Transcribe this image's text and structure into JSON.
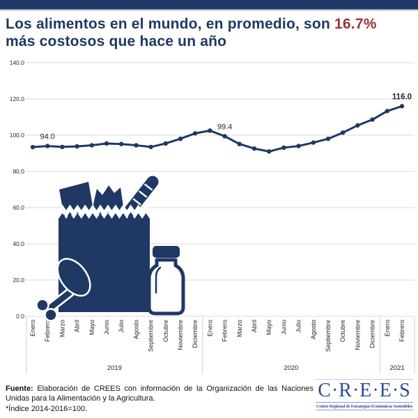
{
  "header": {
    "title_line1_before": "Los alimentos en el mundo, en promedio, son ",
    "title_highlight": "16.7%",
    "title_line2": "más costosos que hace un año"
  },
  "chart_data": {
    "type": "line",
    "categories": [
      "Enero",
      "Febrero",
      "Marzo",
      "Abril",
      "Mayo",
      "Junio",
      "Julio",
      "Agosto",
      "Septiembre",
      "Octubre",
      "Noviembre",
      "Diciembre",
      "Enero",
      "Febrero",
      "Marzo",
      "Abril",
      "Mayo",
      "Junio",
      "Julio",
      "Agosto",
      "Septiembre",
      "Octubre",
      "Noviembre",
      "Diciembre",
      "Enero",
      "Febrero"
    ],
    "year_groups": [
      {
        "label": "2019",
        "count": 12
      },
      {
        "label": "2020",
        "count": 12
      },
      {
        "label": "2021",
        "count": 2
      }
    ],
    "series": [
      {
        "name": "indice-precios-alimentos",
        "values": [
          93.4,
          94.0,
          93.5,
          93.8,
          94.4,
          95.4,
          95.1,
          94.4,
          93.5,
          95.4,
          98.0,
          101.0,
          102.5,
          99.4,
          95.1,
          92.6,
          91.0,
          93.1,
          94.0,
          95.9,
          98.0,
          101.4,
          105.4,
          108.6,
          113.3,
          116.0
        ]
      }
    ],
    "ylim": [
      0,
      140
    ],
    "ytick_interval": 20,
    "ytick_labels": [
      "0.0",
      "20.0",
      "40.0",
      "60.0",
      "80.0",
      "100.0",
      "120.0",
      "140.0"
    ],
    "annotations": [
      {
        "index": 1,
        "label": "94.0",
        "bold": false
      },
      {
        "index": 13,
        "label": "99.4",
        "bold": false
      },
      {
        "index": 25,
        "label": "116.0",
        "bold": true
      }
    ],
    "grid": true,
    "legend": "none"
  },
  "footer": {
    "source_label": "Fuente:",
    "source_text": " Elaboración de CREES con información de la Organización de las Naciones Unidas para la Alimentación y la Agricultura.",
    "index_note": "*Índice 2014-2016=100.",
    "logo": {
      "text": "C·R·E·E·S",
      "tagline": "Centro Regional de Estrategias Económicas Sostenibles"
    }
  },
  "colors": {
    "navy": "#1f3864",
    "accent_red": "#9c3234",
    "grid": "#d9d9d9",
    "separator": "#cfcfcf",
    "topbar_underline": "#97a8c4",
    "logo_blue": "#2d4b99"
  }
}
